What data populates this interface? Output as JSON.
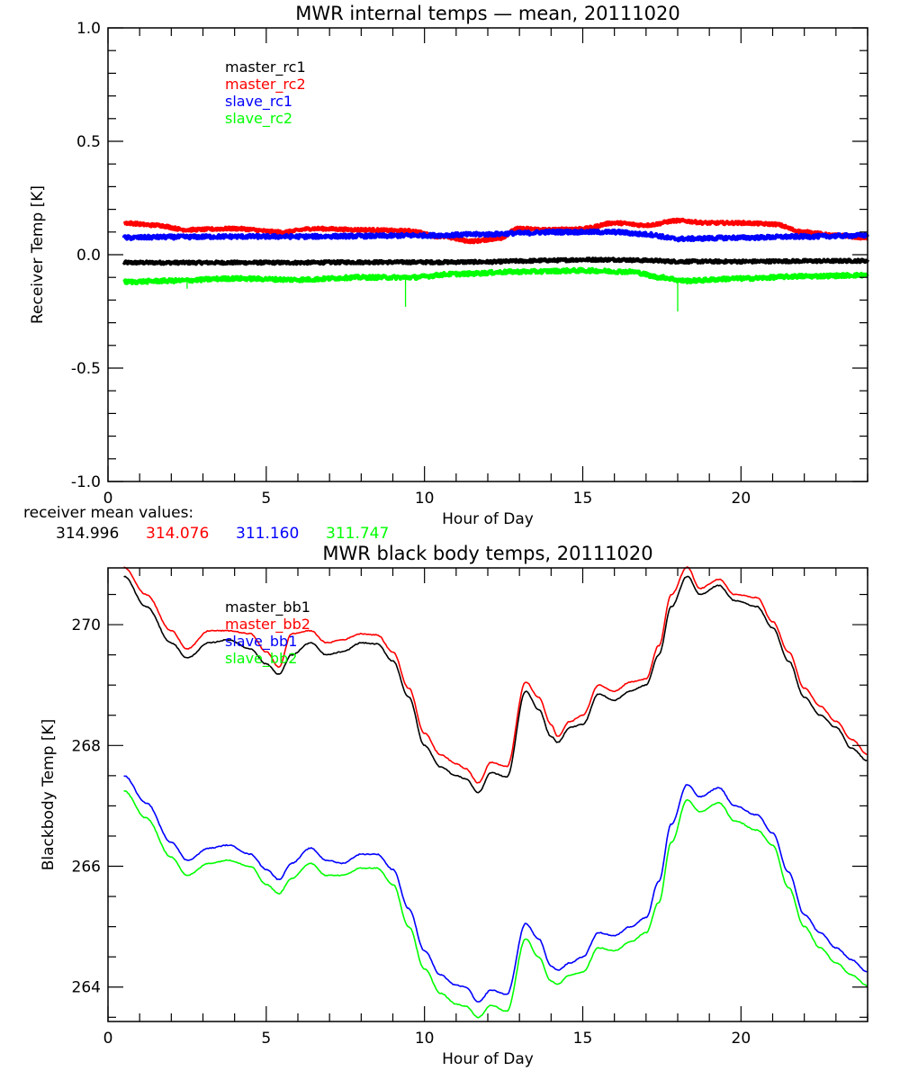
{
  "chart_data": [
    {
      "type": "line",
      "title": "MWR internal temps — mean, 20111020",
      "xlabel": "Hour of Day",
      "ylabel": "Receiver Temp [K]",
      "xlim": [
        0,
        24
      ],
      "ylim": [
        -1.0,
        1.0
      ],
      "xticks": [
        0,
        5,
        10,
        15,
        20
      ],
      "xtick_labels": [
        "0",
        "5",
        "10",
        "15",
        "20"
      ],
      "yticks": [
        -1.0,
        -0.5,
        0.0,
        0.5,
        1.0
      ],
      "ytick_labels": [
        "-1.0",
        "-0.5",
        "0.0",
        "0.5",
        "1.0"
      ],
      "grid": false,
      "legend_placement": "top-left",
      "series": [
        {
          "name": "master_rc1",
          "color": "#000000",
          "noise": 0.006,
          "x": [
            0.5,
            2,
            4,
            6,
            8,
            10,
            12,
            13,
            14,
            15,
            16,
            17,
            18,
            20,
            22,
            24
          ],
          "values": [
            -0.035,
            -0.035,
            -0.035,
            -0.035,
            -0.033,
            -0.033,
            -0.032,
            -0.028,
            -0.025,
            -0.022,
            -0.022,
            -0.025,
            -0.03,
            -0.03,
            -0.028,
            -0.027
          ]
        },
        {
          "name": "master_rc2",
          "color": "#ff0000",
          "noise": 0.006,
          "x": [
            0.5,
            1.5,
            2.5,
            4,
            5.5,
            6.5,
            8,
            9.5,
            10.5,
            11.5,
            12.3,
            13,
            14,
            15,
            16,
            17,
            18,
            19,
            20,
            21,
            22,
            23,
            24
          ],
          "values": [
            0.14,
            0.13,
            0.11,
            0.115,
            0.1,
            0.115,
            0.11,
            0.105,
            0.08,
            0.06,
            0.07,
            0.115,
            0.11,
            0.115,
            0.14,
            0.13,
            0.15,
            0.14,
            0.14,
            0.135,
            0.1,
            0.085,
            0.075
          ]
        },
        {
          "name": "slave_rc1",
          "color": "#0000ff",
          "noise": 0.008,
          "x": [
            0.5,
            2,
            4,
            6,
            8,
            10,
            12,
            13,
            14,
            15,
            16,
            17,
            18,
            20,
            22,
            24
          ],
          "values": [
            0.075,
            0.078,
            0.08,
            0.08,
            0.082,
            0.085,
            0.09,
            0.095,
            0.1,
            0.1,
            0.1,
            0.09,
            0.07,
            0.075,
            0.08,
            0.085
          ]
        },
        {
          "name": "slave_rc2",
          "color": "#00ff00",
          "noise": 0.008,
          "x": [
            0.5,
            2,
            4,
            6,
            8,
            9.5,
            11,
            13,
            15,
            16.5,
            17.5,
            18.2,
            20,
            22,
            24
          ],
          "values": [
            -0.12,
            -0.115,
            -0.105,
            -0.11,
            -0.1,
            -0.1,
            -0.085,
            -0.075,
            -0.07,
            -0.075,
            -0.1,
            -0.115,
            -0.105,
            -0.095,
            -0.09
          ],
          "spikes": [
            {
              "x": 2.5,
              "y": -0.15
            },
            {
              "x": 9.4,
              "y": -0.23
            },
            {
              "x": 18.0,
              "y": -0.25
            }
          ]
        }
      ]
    },
    {
      "type": "line",
      "title": "MWR black body temps, 20111020",
      "xlabel": "Hour of Day",
      "ylabel": "Blackbody Temp [K]",
      "xlim": [
        0,
        24
      ],
      "ylim": [
        263.43,
        270.94
      ],
      "xticks": [
        0,
        5,
        10,
        15,
        20
      ],
      "xtick_labels": [
        "0",
        "5",
        "10",
        "15",
        "20"
      ],
      "yticks": [
        264,
        266,
        268,
        270
      ],
      "ytick_labels": [
        "264",
        "266",
        "268",
        "270"
      ],
      "grid": false,
      "legend_placement": "top-left",
      "series": [
        {
          "name": "master_bb1",
          "color": "#000000",
          "x": [
            0.5,
            1.2,
            2.0,
            2.5,
            3.2,
            3.8,
            4.5,
            5.0,
            5.4,
            5.8,
            6.4,
            6.9,
            7.4,
            8.0,
            8.5,
            9.0,
            9.5,
            10.0,
            10.5,
            11.0,
            11.3,
            11.7,
            12.1,
            12.6,
            13.2,
            13.6,
            14.0,
            14.2,
            14.6,
            15.0,
            15.5,
            16.0,
            16.5,
            17.0,
            17.4,
            17.8,
            18.3,
            18.7,
            19.3,
            19.8,
            20.5,
            21.0,
            21.5,
            22.0,
            22.5,
            23.0,
            23.5,
            24.0
          ],
          "values": [
            270.8,
            270.3,
            269.7,
            269.45,
            269.7,
            269.75,
            269.6,
            269.35,
            269.18,
            269.5,
            269.7,
            269.5,
            269.55,
            269.7,
            269.68,
            269.4,
            268.8,
            268.0,
            267.65,
            267.5,
            267.45,
            267.22,
            267.55,
            267.48,
            268.9,
            268.6,
            268.15,
            268.05,
            268.3,
            268.35,
            268.85,
            268.75,
            268.9,
            269.0,
            269.5,
            270.3,
            270.8,
            270.5,
            270.65,
            270.4,
            270.3,
            269.95,
            269.4,
            268.8,
            268.5,
            268.3,
            267.95,
            267.75
          ]
        },
        {
          "name": "master_bb2",
          "color": "#ff0000",
          "x": [
            0.5,
            1.2,
            2.0,
            2.5,
            3.2,
            3.8,
            4.5,
            5.0,
            5.4,
            5.8,
            6.4,
            6.9,
            7.4,
            8.0,
            8.5,
            9.0,
            9.5,
            10.0,
            10.5,
            11.0,
            11.3,
            11.7,
            12.1,
            12.6,
            13.2,
            13.6,
            14.0,
            14.2,
            14.6,
            15.0,
            15.5,
            16.0,
            16.5,
            17.0,
            17.4,
            17.8,
            18.3,
            18.7,
            19.3,
            19.8,
            20.5,
            21.0,
            21.5,
            22.0,
            22.5,
            23.0,
            23.5,
            24.0
          ],
          "values": [
            270.95,
            270.5,
            269.9,
            269.6,
            269.9,
            269.9,
            269.85,
            269.55,
            269.3,
            269.85,
            269.9,
            269.7,
            269.75,
            269.85,
            269.83,
            269.55,
            268.95,
            268.2,
            267.85,
            267.7,
            267.62,
            267.38,
            267.72,
            267.65,
            269.05,
            268.8,
            268.35,
            268.15,
            268.4,
            268.5,
            269.0,
            268.9,
            269.05,
            269.1,
            269.65,
            270.5,
            270.95,
            270.6,
            270.75,
            270.5,
            270.45,
            270.05,
            269.55,
            268.95,
            268.65,
            268.4,
            268.1,
            267.85
          ]
        },
        {
          "name": "slave_bb1",
          "color": "#0000ff",
          "x": [
            0.5,
            1.2,
            2.0,
            2.5,
            3.2,
            3.8,
            4.5,
            5.0,
            5.4,
            5.8,
            6.4,
            6.9,
            7.4,
            8.0,
            8.5,
            9.0,
            9.5,
            10.0,
            10.5,
            11.0,
            11.3,
            11.7,
            12.1,
            12.6,
            13.2,
            13.6,
            14.0,
            14.2,
            14.6,
            15.0,
            15.5,
            16.0,
            16.5,
            17.0,
            17.4,
            17.8,
            18.3,
            18.7,
            19.3,
            19.8,
            20.5,
            21.0,
            21.5,
            22.0,
            22.5,
            23.0,
            23.5,
            24.0
          ],
          "values": [
            267.5,
            267.05,
            266.4,
            266.1,
            266.3,
            266.35,
            266.2,
            265.95,
            265.78,
            266.05,
            266.3,
            266.1,
            266.05,
            266.2,
            266.2,
            265.95,
            265.3,
            264.6,
            264.2,
            264.03,
            264.0,
            263.75,
            263.95,
            263.88,
            265.05,
            264.8,
            264.35,
            264.28,
            264.4,
            264.5,
            264.9,
            264.85,
            265.0,
            265.15,
            265.75,
            266.7,
            267.35,
            267.15,
            267.3,
            267.0,
            266.85,
            266.55,
            265.9,
            265.2,
            264.9,
            264.65,
            264.45,
            264.25
          ]
        },
        {
          "name": "slave_bb2",
          "color": "#00ff00",
          "x": [
            0.5,
            1.2,
            2.0,
            2.5,
            3.2,
            3.8,
            4.5,
            5.0,
            5.4,
            5.8,
            6.4,
            6.9,
            7.4,
            8.0,
            8.5,
            9.0,
            9.5,
            10.0,
            10.5,
            11.0,
            11.3,
            11.7,
            12.1,
            12.6,
            13.2,
            13.6,
            14.0,
            14.2,
            14.6,
            15.0,
            15.5,
            16.0,
            16.5,
            17.0,
            17.4,
            17.8,
            18.3,
            18.7,
            19.3,
            19.8,
            20.5,
            21.0,
            21.5,
            22.0,
            22.5,
            23.0,
            23.5,
            24.0
          ],
          "values": [
            267.25,
            266.8,
            266.15,
            265.85,
            266.05,
            266.1,
            266.0,
            265.7,
            265.55,
            265.8,
            266.05,
            265.85,
            265.85,
            265.97,
            265.97,
            265.7,
            265.0,
            264.3,
            263.9,
            263.72,
            263.68,
            263.5,
            263.7,
            263.6,
            264.8,
            264.5,
            264.1,
            264.05,
            264.2,
            264.25,
            264.65,
            264.6,
            264.75,
            264.9,
            265.4,
            266.4,
            267.1,
            266.9,
            267.05,
            266.75,
            266.6,
            266.35,
            265.65,
            265.0,
            264.65,
            264.4,
            264.2,
            264.02
          ]
        }
      ]
    }
  ],
  "top_chart": {
    "title": "MWR internal temps — mean, 20111020",
    "xlabel": "Hour of Day",
    "ylabel": "Receiver Temp [K]",
    "legend": [
      "master_rc1",
      "master_rc2",
      "slave_rc1",
      "slave_rc2"
    ]
  },
  "mean_values": {
    "label": "receiver mean values:",
    "values": [
      {
        "text": "314.996",
        "color": "#000000"
      },
      {
        "text": "314.076",
        "color": "#ff0000"
      },
      {
        "text": "311.160",
        "color": "#0000ff"
      },
      {
        "text": "311.747",
        "color": "#00ff00"
      }
    ]
  },
  "bottom_chart": {
    "title": "MWR black body temps, 20111020",
    "xlabel": "Hour of Day",
    "ylabel": "Blackbody Temp [K]",
    "legend": [
      "master_bb1",
      "master_bb2",
      "slave_bb1",
      "slave_bb2"
    ]
  }
}
